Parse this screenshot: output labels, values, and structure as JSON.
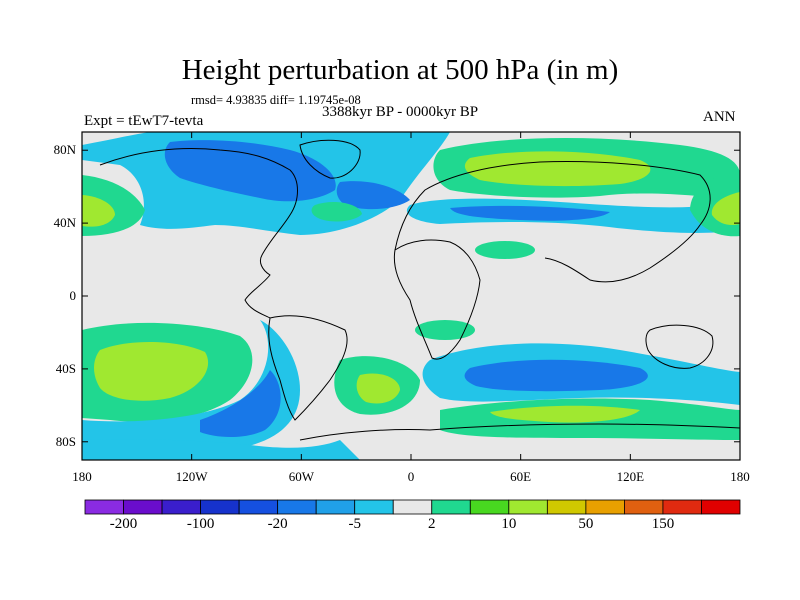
{
  "title": "Height perturbation at 500 hPa (in m)",
  "stats": "rmsd= 4.93835  diff= 1.19745e-08",
  "left_label": "Expt = tEwT7-tevta",
  "center_label": "3388kyr BP - 0000kyr BP",
  "right_label": "ANN",
  "y_ticks": [
    {
      "label": "80N",
      "lat": 80
    },
    {
      "label": "40N",
      "lat": 40
    },
    {
      "label": "0",
      "lat": 0
    },
    {
      "label": "40S",
      "lat": -40
    },
    {
      "label": "80S",
      "lat": -80
    }
  ],
  "x_ticks": [
    {
      "label": "180",
      "lon": -180
    },
    {
      "label": "120W",
      "lon": -120
    },
    {
      "label": "60W",
      "lon": -60
    },
    {
      "label": "0",
      "lon": 0
    },
    {
      "label": "60E",
      "lon": 60
    },
    {
      "label": "120E",
      "lon": 120
    },
    {
      "label": "180",
      "lon": 180
    }
  ],
  "colorbar": {
    "colors": [
      "#8a2be2",
      "#6a0dcc",
      "#3a1ecc",
      "#1632cc",
      "#1550e0",
      "#1878e8",
      "#20a0e8",
      "#23c4e8",
      "#e8e8e8",
      "#20d890",
      "#48d820",
      "#a0e830",
      "#d0c800",
      "#e8a000",
      "#e06010",
      "#e02a10",
      "#e00000"
    ],
    "labels": [
      {
        "label": "-200",
        "boundary": 1
      },
      {
        "label": "-100",
        "boundary": 3
      },
      {
        "label": "-20",
        "boundary": 5
      },
      {
        "label": "-5",
        "boundary": 7
      },
      {
        "label": "2",
        "boundary": 9
      },
      {
        "label": "10",
        "boundary": 11
      },
      {
        "label": "50",
        "boundary": 13
      },
      {
        "label": "150",
        "boundary": 15
      }
    ]
  },
  "map_extent": {
    "lon": [
      -180,
      180
    ],
    "lat": [
      -90,
      90
    ]
  }
}
